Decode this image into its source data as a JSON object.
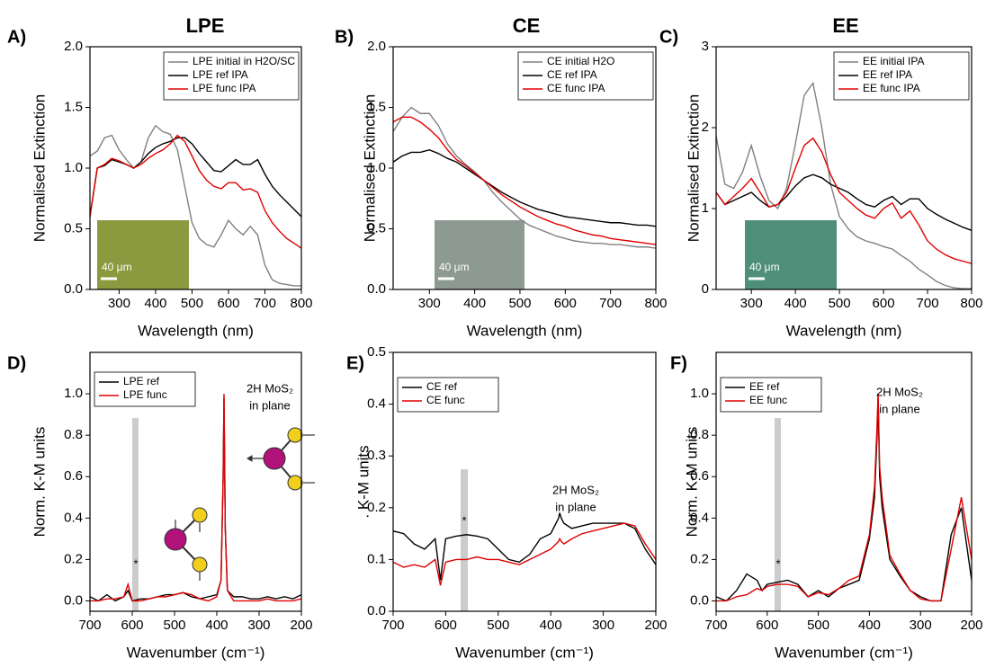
{
  "chart_data": [
    {
      "type": "line",
      "panel_label": "A)",
      "title": "LPE",
      "xlabel": "Wavelength (nm)",
      "ylabel": "Normalised Extinction",
      "xlim": [
        220,
        800
      ],
      "xticks": [
        300,
        400,
        500,
        600,
        700,
        800
      ],
      "ylim": [
        0,
        2
      ],
      "yticks": [
        {
          "value": 0,
          "label": "0.0"
        },
        0.5,
        {
          "value": 1,
          "label": "1.0"
        },
        1.5,
        {
          "value": 2,
          "label": "2.0"
        }
      ],
      "legend": "upper right",
      "inset_label": "40 μm",
      "x": [
        220,
        240,
        260,
        280,
        300,
        320,
        340,
        360,
        380,
        400,
        420,
        440,
        460,
        480,
        500,
        520,
        540,
        560,
        580,
        600,
        620,
        640,
        660,
        680,
        700,
        720,
        740,
        760,
        780,
        800
      ],
      "series": [
        {
          "name": "LPE initial in H2O/SC",
          "color": "#808080",
          "values": [
            1.1,
            1.14,
            1.25,
            1.27,
            1.15,
            1.07,
            1.0,
            1.05,
            1.25,
            1.35,
            1.3,
            1.28,
            1.15,
            0.85,
            0.55,
            0.42,
            0.37,
            0.35,
            0.45,
            0.57,
            0.5,
            0.45,
            0.52,
            0.45,
            0.2,
            0.08,
            0.05,
            0.04,
            0.03,
            0.03
          ]
        },
        {
          "name": "LPE ref IPA",
          "color": "#000000",
          "values": [
            0.6,
            1.0,
            1.02,
            1.07,
            1.05,
            1.03,
            1.0,
            1.05,
            1.12,
            1.17,
            1.2,
            1.22,
            1.25,
            1.25,
            1.2,
            1.12,
            1.05,
            0.98,
            0.97,
            1.02,
            1.07,
            1.03,
            1.03,
            1.07,
            0.95,
            0.85,
            0.78,
            0.72,
            0.66,
            0.6
          ]
        },
        {
          "name": "LPE func IPA",
          "color": "#e00000",
          "values": [
            0.6,
            1.0,
            1.03,
            1.08,
            1.06,
            1.03,
            1.0,
            1.03,
            1.08,
            1.12,
            1.15,
            1.2,
            1.27,
            1.22,
            1.1,
            0.98,
            0.9,
            0.85,
            0.83,
            0.88,
            0.88,
            0.82,
            0.83,
            0.8,
            0.65,
            0.55,
            0.48,
            0.42,
            0.38,
            0.34
          ]
        }
      ]
    },
    {
      "type": "line",
      "panel_label": "B)",
      "title": "CE",
      "xlabel": "Wavelength (nm)",
      "ylabel": "Normalised Extinction",
      "xlim": [
        220,
        800
      ],
      "xticks": [
        300,
        400,
        500,
        600,
        700,
        800
      ],
      "ylim": [
        0,
        2
      ],
      "yticks": [
        {
          "value": 0,
          "label": "0.0"
        },
        0.5,
        {
          "value": 1,
          "label": "1.0"
        },
        1.5,
        {
          "value": 2,
          "label": "2.0"
        }
      ],
      "legend": "upper right",
      "inset_label": "40 μm",
      "x": [
        220,
        240,
        260,
        280,
        300,
        320,
        340,
        360,
        380,
        400,
        420,
        440,
        460,
        480,
        500,
        520,
        540,
        560,
        580,
        600,
        620,
        640,
        660,
        680,
        700,
        720,
        740,
        760,
        780,
        800
      ],
      "series": [
        {
          "name": "CE initial H2O",
          "color": "#808080",
          "values": [
            1.3,
            1.42,
            1.5,
            1.45,
            1.45,
            1.35,
            1.2,
            1.1,
            1.03,
            0.97,
            0.9,
            0.8,
            0.72,
            0.65,
            0.58,
            0.53,
            0.5,
            0.47,
            0.44,
            0.42,
            0.4,
            0.39,
            0.38,
            0.38,
            0.37,
            0.37,
            0.36,
            0.35,
            0.35,
            0.34
          ]
        },
        {
          "name": "CE ref IPA",
          "color": "#000000",
          "values": [
            1.05,
            1.1,
            1.13,
            1.13,
            1.15,
            1.12,
            1.08,
            1.05,
            1.0,
            0.95,
            0.9,
            0.85,
            0.8,
            0.76,
            0.72,
            0.69,
            0.66,
            0.64,
            0.62,
            0.6,
            0.59,
            0.58,
            0.57,
            0.56,
            0.55,
            0.55,
            0.54,
            0.53,
            0.53,
            0.52
          ]
        },
        {
          "name": "CE func IPA",
          "color": "#e00000",
          "values": [
            1.38,
            1.42,
            1.42,
            1.38,
            1.32,
            1.25,
            1.15,
            1.07,
            1.02,
            0.96,
            0.9,
            0.84,
            0.78,
            0.73,
            0.68,
            0.64,
            0.6,
            0.57,
            0.54,
            0.52,
            0.49,
            0.47,
            0.45,
            0.44,
            0.42,
            0.41,
            0.4,
            0.39,
            0.38,
            0.37
          ]
        }
      ]
    },
    {
      "type": "line",
      "panel_label": "C)",
      "title": "EE",
      "xlabel": "Wavelength (nm)",
      "ylabel": "Normalised Extinction",
      "xlim": [
        220,
        800
      ],
      "xticks": [
        300,
        400,
        500,
        600,
        700,
        800
      ],
      "ylim": [
        0,
        3
      ],
      "yticks": [
        0,
        1,
        2,
        3
      ],
      "legend": "upper right",
      "inset_label": "40 μm",
      "x": [
        220,
        240,
        260,
        280,
        300,
        320,
        340,
        360,
        380,
        400,
        420,
        440,
        460,
        480,
        500,
        520,
        540,
        560,
        580,
        600,
        620,
        640,
        660,
        680,
        700,
        720,
        740,
        760,
        780,
        800
      ],
      "series": [
        {
          "name": "EE initial IPA",
          "color": "#808080",
          "values": [
            1.9,
            1.3,
            1.25,
            1.45,
            1.78,
            1.4,
            1.1,
            1.0,
            1.25,
            1.8,
            2.4,
            2.55,
            2.0,
            1.3,
            0.9,
            0.75,
            0.65,
            0.6,
            0.57,
            0.53,
            0.5,
            0.42,
            0.35,
            0.25,
            0.18,
            0.1,
            0.05,
            0.02,
            0.01,
            0.01
          ]
        },
        {
          "name": "EE ref IPA",
          "color": "#000000",
          "values": [
            1.2,
            1.05,
            1.1,
            1.15,
            1.2,
            1.1,
            1.02,
            1.05,
            1.15,
            1.28,
            1.38,
            1.42,
            1.38,
            1.3,
            1.25,
            1.2,
            1.12,
            1.05,
            1.02,
            1.1,
            1.15,
            1.05,
            1.12,
            1.12,
            1.0,
            0.93,
            0.87,
            0.82,
            0.77,
            0.73
          ]
        },
        {
          "name": "EE func IPA",
          "color": "#e00000",
          "values": [
            1.2,
            1.05,
            1.15,
            1.25,
            1.37,
            1.2,
            1.02,
            1.05,
            1.2,
            1.5,
            1.78,
            1.87,
            1.7,
            1.42,
            1.2,
            1.1,
            1.0,
            0.92,
            0.88,
            1.0,
            1.07,
            0.88,
            0.97,
            0.8,
            0.6,
            0.5,
            0.43,
            0.38,
            0.35,
            0.32
          ]
        }
      ]
    },
    {
      "type": "line",
      "panel_label": "D)",
      "xlabel": "Wavenumber (cm⁻¹)",
      "ylabel": "Norm. K-M units",
      "xlim": [
        700,
        200
      ],
      "xticks": [
        700,
        600,
        500,
        400,
        300,
        200
      ],
      "ylim": [
        -0.05,
        1.2
      ],
      "yticks": [
        {
          "value": 0,
          "label": "0.0"
        },
        0.2,
        0.4,
        0.6,
        0.8,
        {
          "value": 1,
          "label": "1.0"
        }
      ],
      "legend": "upper left",
      "annotations": [
        "2H MoS₂",
        "in plane",
        "*"
      ],
      "x": [
        700,
        680,
        660,
        640,
        620,
        610,
        600,
        580,
        560,
        540,
        520,
        500,
        480,
        460,
        440,
        420,
        400,
        390,
        385,
        383,
        380,
        375,
        360,
        340,
        320,
        300,
        280,
        260,
        240,
        220,
        200
      ],
      "series": [
        {
          "name": "LPE ref",
          "color": "#000000",
          "values": [
            0.02,
            0.0,
            0.03,
            0.0,
            0.02,
            0.05,
            0.0,
            0.01,
            0.01,
            0.02,
            0.03,
            0.03,
            0.04,
            0.02,
            0.01,
            0.02,
            0.03,
            0.1,
            0.6,
            0.98,
            0.35,
            0.05,
            0.02,
            0.02,
            0.01,
            0.01,
            0.02,
            0.01,
            0.02,
            0.01,
            0.03
          ]
        },
        {
          "name": "LPE func",
          "color": "#e00000",
          "values": [
            0.0,
            0.0,
            0.01,
            0.01,
            0.02,
            0.08,
            0.0,
            0.0,
            0.01,
            0.02,
            0.02,
            0.03,
            0.04,
            0.03,
            0.01,
            0.0,
            0.02,
            0.1,
            0.6,
            1.0,
            0.35,
            0.05,
            0.0,
            0.0,
            0.0,
            0.0,
            0.01,
            0.0,
            0.0,
            0.0,
            0.01
          ]
        }
      ]
    },
    {
      "type": "line",
      "panel_label": "E)",
      "xlabel": "Wavenumber (cm⁻¹)",
      "ylabel": ". K-M units",
      "xlim": [
        700,
        200
      ],
      "xticks": [
        700,
        600,
        500,
        400,
        300,
        200
      ],
      "ylim": [
        0,
        0.5
      ],
      "yticks": [
        {
          "value": 0,
          "label": "0.0"
        },
        0.1,
        0.2,
        0.3,
        0.4,
        0.5
      ],
      "legend": "upper left",
      "annotations": [
        "2H MoS₂",
        "in plane",
        "*"
      ],
      "x": [
        700,
        680,
        660,
        640,
        620,
        610,
        600,
        580,
        560,
        540,
        520,
        500,
        480,
        460,
        440,
        420,
        400,
        390,
        385,
        383,
        380,
        375,
        360,
        340,
        320,
        300,
        280,
        260,
        240,
        220,
        200
      ],
      "series": [
        {
          "name": "CE ref",
          "color": "#000000",
          "values": [
            0.155,
            0.15,
            0.13,
            0.12,
            0.14,
            0.06,
            0.14,
            0.145,
            0.148,
            0.145,
            0.14,
            0.12,
            0.1,
            0.095,
            0.11,
            0.14,
            0.15,
            0.17,
            0.18,
            0.19,
            0.18,
            0.17,
            0.16,
            0.165,
            0.17,
            0.17,
            0.17,
            0.17,
            0.16,
            0.12,
            0.09
          ]
        },
        {
          "name": "CE func",
          "color": "#e00000",
          "values": [
            0.095,
            0.085,
            0.09,
            0.085,
            0.1,
            0.05,
            0.095,
            0.1,
            0.1,
            0.105,
            0.1,
            0.1,
            0.095,
            0.09,
            0.1,
            0.11,
            0.12,
            0.13,
            0.135,
            0.14,
            0.135,
            0.13,
            0.14,
            0.15,
            0.155,
            0.16,
            0.165,
            0.17,
            0.165,
            0.13,
            0.1
          ]
        }
      ]
    },
    {
      "type": "line",
      "panel_label": "F)",
      "xlabel": "Wavenumber (cm⁻¹)",
      "ylabel": "Norm. K-M units",
      "xlim": [
        700,
        200
      ],
      "xticks": [
        700,
        600,
        500,
        400,
        300,
        200
      ],
      "ylim": [
        -0.05,
        1.2
      ],
      "yticks": [
        {
          "value": 0,
          "label": "0.0"
        },
        0.2,
        0.4,
        0.6,
        0.8,
        {
          "value": 1,
          "label": "1.0"
        }
      ],
      "legend": "upper left",
      "annotations": [
        "2H MoS₂",
        "in plane",
        "*"
      ],
      "x": [
        700,
        680,
        660,
        640,
        620,
        610,
        600,
        580,
        560,
        540,
        520,
        500,
        480,
        460,
        440,
        420,
        400,
        390,
        385,
        383,
        380,
        375,
        360,
        340,
        320,
        300,
        280,
        260,
        240,
        220,
        200
      ],
      "series": [
        {
          "name": "EE ref",
          "color": "#000000",
          "values": [
            0.02,
            0.0,
            0.05,
            0.13,
            0.1,
            0.05,
            0.08,
            0.09,
            0.1,
            0.08,
            0.02,
            0.05,
            0.02,
            0.06,
            0.08,
            0.1,
            0.3,
            0.5,
            0.8,
            0.98,
            0.6,
            0.45,
            0.2,
            0.12,
            0.05,
            0.02,
            0.0,
            0.0,
            0.32,
            0.45,
            0.1
          ]
        },
        {
          "name": "EE func",
          "color": "#e00000",
          "values": [
            0.0,
            0.0,
            0.02,
            0.03,
            0.06,
            0.05,
            0.07,
            0.08,
            0.08,
            0.07,
            0.02,
            0.04,
            0.03,
            0.06,
            0.1,
            0.12,
            0.32,
            0.55,
            0.85,
            1.0,
            0.65,
            0.5,
            0.22,
            0.13,
            0.05,
            0.01,
            0.0,
            0.0,
            0.25,
            0.5,
            0.2
          ]
        }
      ]
    }
  ]
}
